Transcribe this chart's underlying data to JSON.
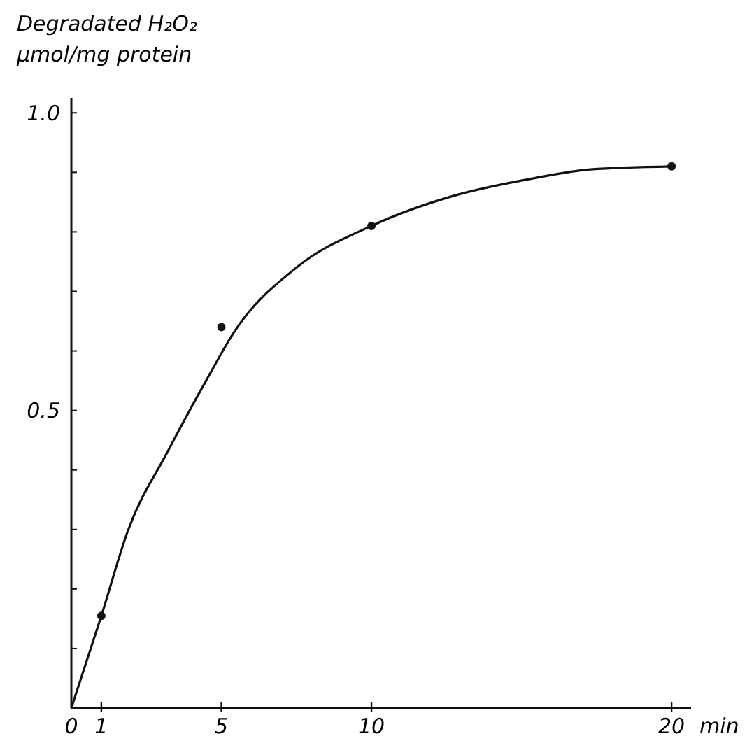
{
  "chart_data": {
    "type": "scatter",
    "ylabel": "Degradated H₂O₂\nµmol/mg protein",
    "xlabel": "min",
    "x": [
      1,
      5,
      10,
      20
    ],
    "series": [
      {
        "color": "#111111",
        "values": [
          0.155,
          0.64,
          0.81,
          0.91
        ]
      },
      {
        "type": "line",
        "color": "#111111",
        "x": [
          0,
          1,
          1.9,
          3.2,
          4.6,
          5.4,
          7.5,
          10,
          12.7,
          15.4,
          17.3,
          20
        ],
        "values": [
          0,
          0.155,
          0.3,
          0.43,
          0.56,
          0.63,
          0.74,
          0.81,
          0.86,
          0.89,
          0.905,
          0.91
        ]
      }
    ],
    "xlim": [
      0,
      20.65
    ],
    "ylim": [
      0,
      1.025
    ],
    "xticks": [
      0,
      1,
      5,
      10,
      20
    ],
    "yticks": [
      {
        "value": 0.1,
        "label": null
      },
      {
        "value": 0.2,
        "label": null
      },
      {
        "value": 0.3,
        "label": null
      },
      {
        "value": 0.4,
        "label": null
      },
      {
        "value": 0.5,
        "label": "0.5"
      },
      {
        "value": 0.6,
        "label": null
      },
      {
        "value": 0.7,
        "label": null
      },
      {
        "value": 0.8,
        "label": null
      },
      {
        "value": 0.9,
        "label": null
      },
      {
        "value": 1.0,
        "label": "1.0"
      }
    ],
    "grid": false,
    "line_style": "solid"
  }
}
